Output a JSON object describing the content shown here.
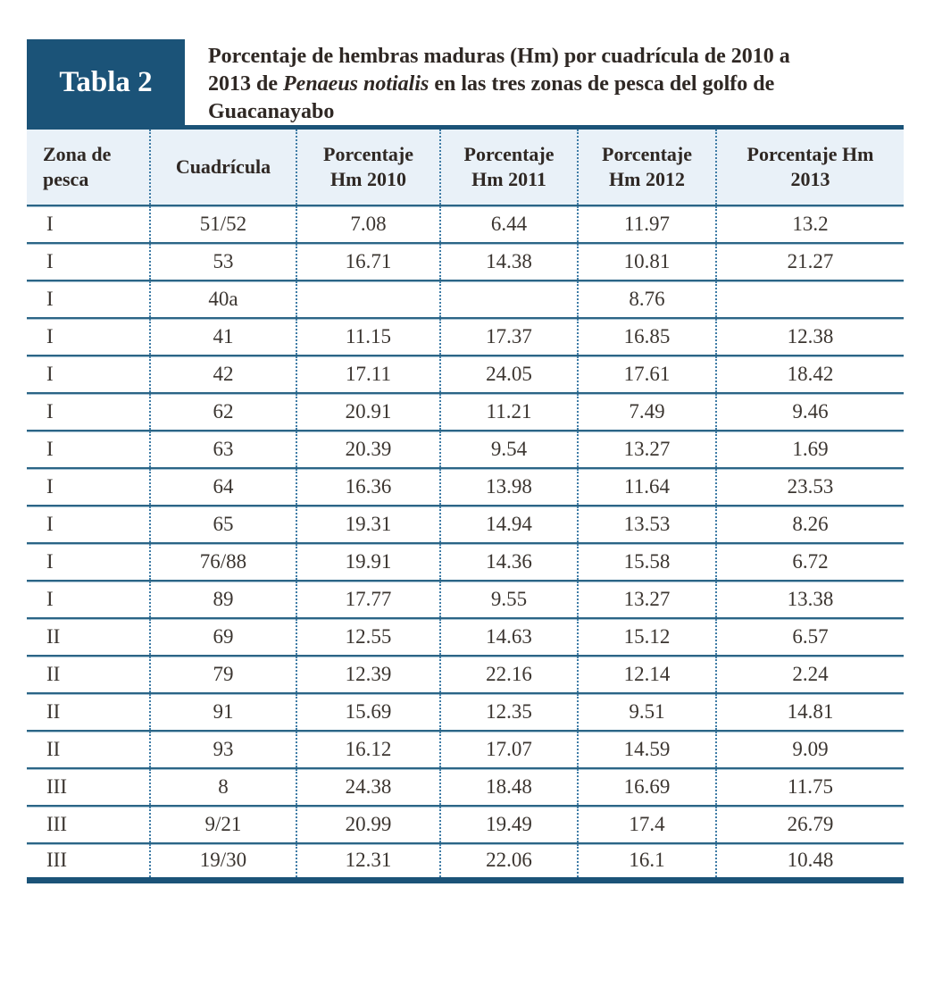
{
  "caption": {
    "label": "Tabla 2",
    "title_prefix": "Porcentaje de hembras maduras (Hm) por cuadrícula de 2010 a 2013 de ",
    "title_species": "Penaeus notialis",
    "title_suffix": " en las tres zonas de pesca del golfo de Guacanayabo"
  },
  "colors": {
    "accent_dark_blue": "#1b5378",
    "header_background": "#e9f1f8",
    "row_rule": "#2b6586",
    "dotted_separator": "#3f7ca6",
    "label_text": "#ffffff",
    "body_text": "#3b3530",
    "heading_text": "#2f2824"
  },
  "table": {
    "columns": [
      "Zona de pesca",
      "Cuadrícula",
      "Porcentaje Hm 2010",
      "Porcentaje Hm 2011",
      "Porcentaje Hm 2012",
      "Porcentaje Hm 2013"
    ],
    "column_keys": [
      "zona-de-pesca",
      "cuadricula",
      "porcentaje-hm-2010",
      "porcentaje-hm-2011",
      "porcentaje-hm-2012",
      "porcentaje-hm-2013"
    ],
    "rows": [
      [
        "I",
        "51/52",
        "7.08",
        "6.44",
        "11.97",
        "13.2"
      ],
      [
        "I",
        "53",
        "16.71",
        "14.38",
        "10.81",
        "21.27"
      ],
      [
        "I",
        "40a",
        "",
        "",
        "8.76",
        ""
      ],
      [
        "I",
        "41",
        "11.15",
        "17.37",
        "16.85",
        "12.38"
      ],
      [
        "I",
        "42",
        "17.11",
        "24.05",
        "17.61",
        "18.42"
      ],
      [
        "I",
        "62",
        "20.91",
        "11.21",
        "7.49",
        "9.46"
      ],
      [
        "I",
        "63",
        "20.39",
        "9.54",
        "13.27",
        "1.69"
      ],
      [
        "I",
        "64",
        "16.36",
        "13.98",
        "11.64",
        "23.53"
      ],
      [
        "I",
        "65",
        "19.31",
        "14.94",
        "13.53",
        "8.26"
      ],
      [
        "I",
        "76/88",
        "19.91",
        "14.36",
        "15.58",
        "6.72"
      ],
      [
        "I",
        "89",
        "17.77",
        "9.55",
        "13.27",
        "13.38"
      ],
      [
        "II",
        "69",
        "12.55",
        "14.63",
        "15.12",
        "6.57"
      ],
      [
        "II",
        "79",
        "12.39",
        "22.16",
        "12.14",
        "2.24"
      ],
      [
        "II",
        "91",
        "15.69",
        "12.35",
        "9.51",
        "14.81"
      ],
      [
        "II",
        "93",
        "16.12",
        "17.07",
        "14.59",
        "9.09"
      ],
      [
        "III",
        "8",
        "24.38",
        "18.48",
        "16.69",
        "11.75"
      ],
      [
        "III",
        "9/21",
        "20.99",
        "19.49",
        "17.4",
        "26.79"
      ],
      [
        "III",
        "19/30",
        "12.31",
        "22.06",
        "16.1",
        "10.48"
      ]
    ]
  }
}
